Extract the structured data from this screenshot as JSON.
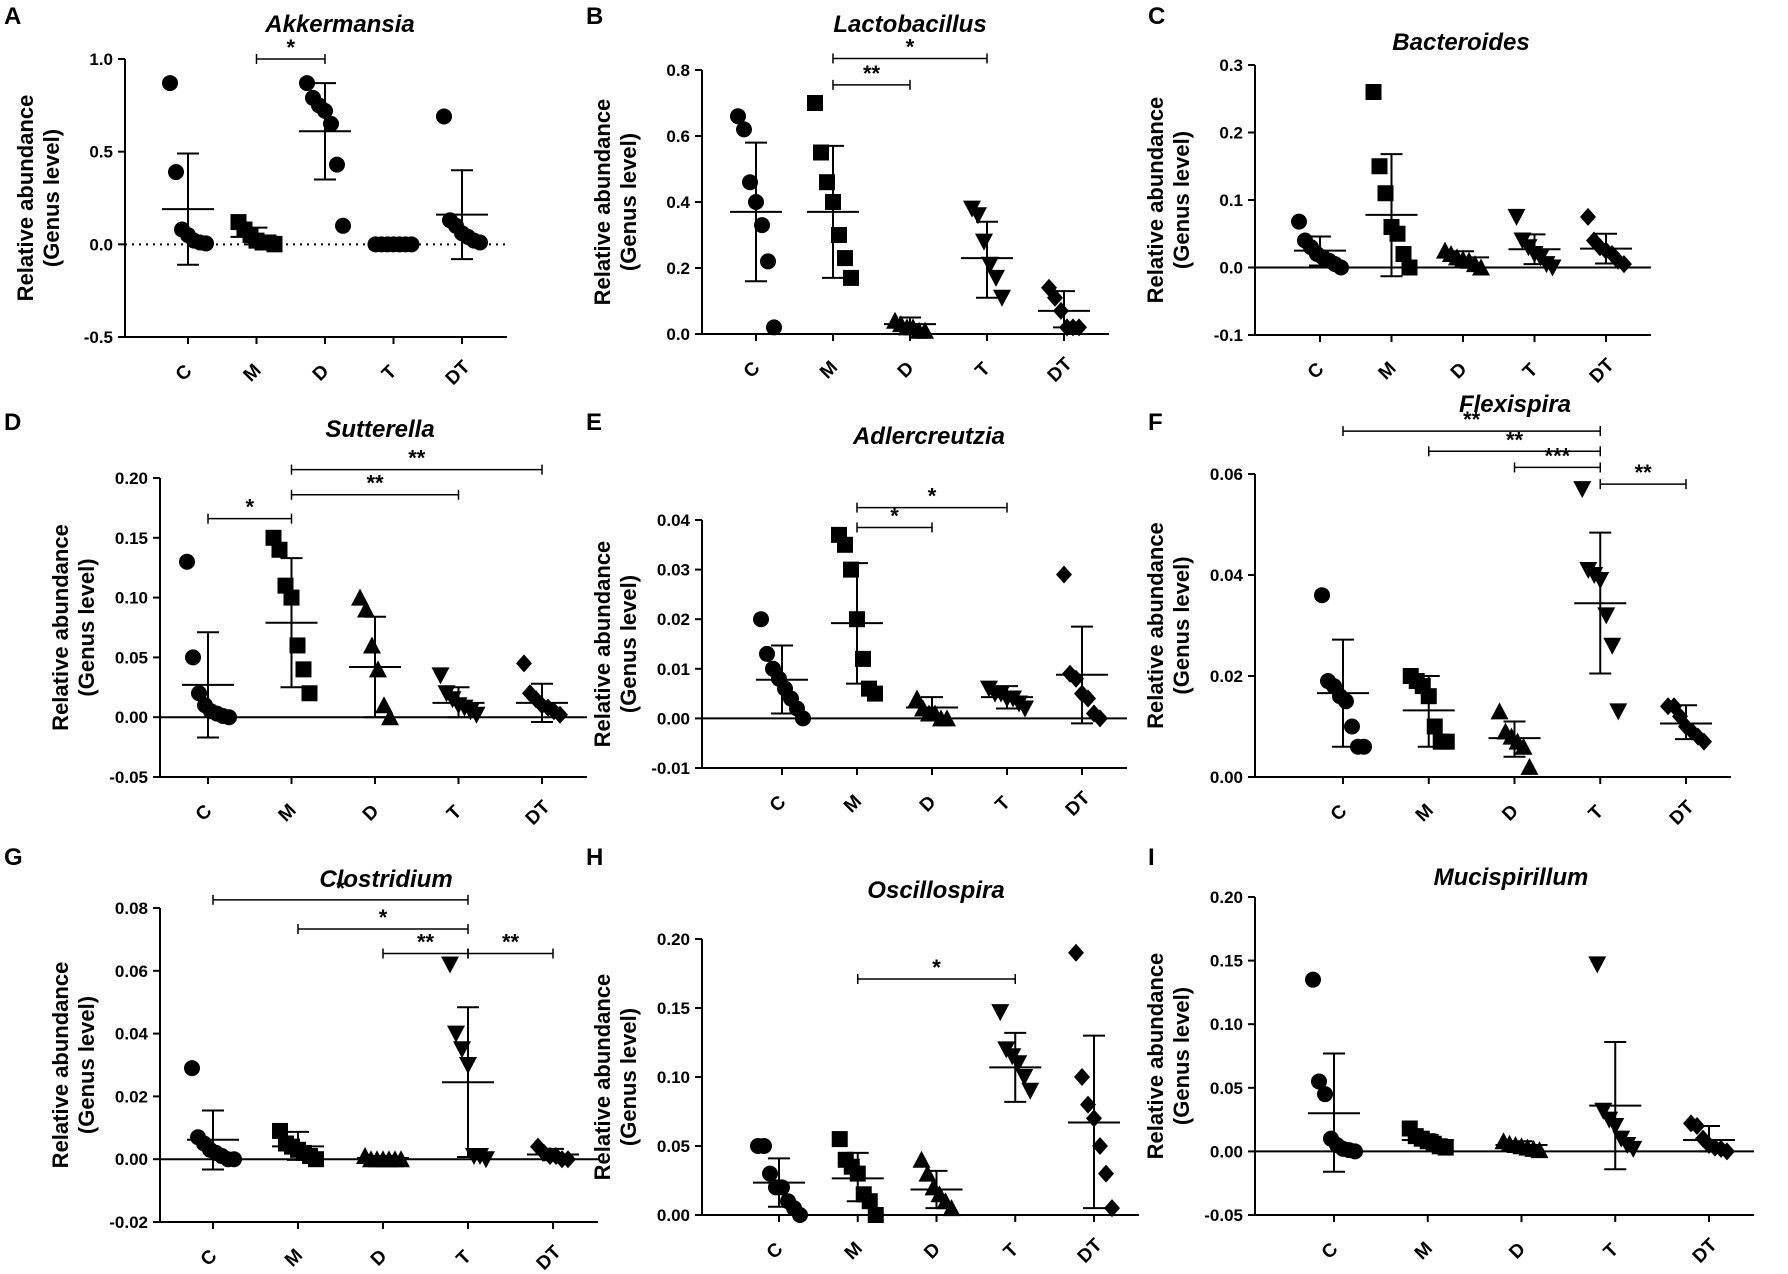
{
  "y_axis_label_line1": "Relative abundance",
  "y_axis_label_line2": "(Genus level)",
  "chart_data": [
    {
      "panel": "A",
      "type": "scatter",
      "title": "Akkermansia",
      "categories": [
        "C",
        "M",
        "D",
        "T",
        "DT"
      ],
      "markers": [
        "circle",
        "square",
        "circle",
        "circle",
        "circle"
      ],
      "ylim": [
        -0.5,
        1.0
      ],
      "yticks": [
        "-0.5",
        "0.0",
        "0.5",
        "1.0"
      ],
      "y_tick_values": [
        -0.5,
        0,
        0.5,
        1.0
      ],
      "dotted_zero_line": true,
      "points": [
        [
          0.87,
          0.39,
          0.08,
          0.05,
          0.02,
          0.01,
          0.005
        ],
        [
          0.12,
          0.08,
          0.05,
          0.02,
          0.01,
          0.01,
          0.0
        ],
        [
          0.87,
          0.79,
          0.75,
          0.72,
          0.65,
          0.43,
          0.1
        ],
        [
          0.0,
          0.0,
          0.0,
          0.0,
          0.0,
          0.0,
          0.0
        ],
        [
          0.69,
          0.13,
          0.1,
          0.06,
          0.04,
          0.02,
          0.01
        ]
      ],
      "means": [
        0.19,
        0.04,
        0.61,
        0.0,
        0.16
      ],
      "sd_low": [
        -0.11,
        0.0,
        0.35,
        0.0,
        -0.08
      ],
      "sd_high": [
        0.49,
        0.09,
        0.87,
        0.0,
        0.4
      ],
      "significance": [
        {
          "from": "M",
          "to": "D",
          "label": "*",
          "y": 1.0
        }
      ]
    },
    {
      "panel": "B",
      "type": "scatter",
      "title": "Lactobacillus",
      "categories": [
        "C",
        "M",
        "D",
        "T",
        "DT"
      ],
      "markers": [
        "circle",
        "square",
        "triangle",
        "triangle-down",
        "diamond"
      ],
      "ylim": [
        0.0,
        0.8
      ],
      "yticks": [
        "0.0",
        "0.2",
        "0.4",
        "0.6",
        "0.8"
      ],
      "y_tick_values": [
        0,
        0.2,
        0.4,
        0.6,
        0.8
      ],
      "dotted_zero_line": false,
      "points": [
        [
          0.66,
          0.62,
          0.46,
          0.4,
          0.33,
          0.22,
          0.02
        ],
        [
          0.7,
          0.55,
          0.46,
          0.4,
          0.3,
          0.23,
          0.17
        ],
        [
          0.04,
          0.03,
          0.02,
          0.02,
          0.01,
          0.01
        ],
        [
          0.38,
          0.36,
          0.28,
          0.21,
          0.17,
          0.11
        ],
        [
          0.14,
          0.11,
          0.07,
          0.02,
          0.02,
          0.02
        ]
      ],
      "means": [
        0.37,
        0.37,
        0.03,
        0.23,
        0.07
      ],
      "sd_low": [
        0.16,
        0.17,
        0.01,
        0.11,
        0.02
      ],
      "sd_high": [
        0.58,
        0.57,
        0.05,
        0.34,
        0.13
      ],
      "significance": [
        {
          "from": "M",
          "to": "T",
          "label": "*",
          "y": 0.835
        },
        {
          "from": "M",
          "to": "D",
          "label": "**",
          "y": 0.755
        }
      ]
    },
    {
      "panel": "C",
      "type": "scatter",
      "title": "Bacteroides",
      "categories": [
        "C",
        "M",
        "D",
        "T",
        "DT"
      ],
      "markers": [
        "circle",
        "square",
        "triangle",
        "triangle-down",
        "diamond"
      ],
      "ylim": [
        -0.1,
        0.3
      ],
      "yticks": [
        "-0.1",
        "0.0",
        "0.1",
        "0.2",
        "0.3"
      ],
      "y_tick_values": [
        -0.1,
        0,
        0.1,
        0.2,
        0.3
      ],
      "dotted_zero_line": false,
      "points": [
        [
          0.068,
          0.04,
          0.03,
          0.02,
          0.015,
          0.01,
          0.005,
          0.0
        ],
        [
          0.26,
          0.15,
          0.11,
          0.06,
          0.05,
          0.02,
          0.0
        ],
        [
          0.025,
          0.02,
          0.015,
          0.012,
          0.01,
          0.005,
          0.0
        ],
        [
          0.075,
          0.04,
          0.03,
          0.02,
          0.015,
          0.005,
          0.0
        ],
        [
          0.075,
          0.04,
          0.03,
          0.025,
          0.02,
          0.01,
          0.005
        ]
      ],
      "means": [
        0.025,
        0.078,
        0.015,
        0.027,
        0.028
      ],
      "sd_low": [
        0.003,
        -0.013,
        0.005,
        0.005,
        0.006
      ],
      "sd_high": [
        0.046,
        0.168,
        0.024,
        0.049,
        0.05
      ],
      "significance": []
    },
    {
      "panel": "D",
      "type": "scatter",
      "title": "Sutterella",
      "categories": [
        "C",
        "M",
        "D",
        "T",
        "DT"
      ],
      "markers": [
        "circle",
        "square",
        "triangle",
        "triangle-down",
        "diamond"
      ],
      "ylim": [
        -0.05,
        0.2
      ],
      "yticks": [
        "-0.05",
        "0.00",
        "0.05",
        "0.10",
        "0.15",
        "0.20"
      ],
      "y_tick_values": [
        -0.05,
        0,
        0.05,
        0.1,
        0.15,
        0.2
      ],
      "dotted_zero_line": false,
      "points": [
        [
          0.13,
          0.05,
          0.02,
          0.01,
          0.005,
          0.003,
          0.001,
          0.0
        ],
        [
          0.15,
          0.14,
          0.11,
          0.1,
          0.06,
          0.04,
          0.02
        ],
        [
          0.1,
          0.09,
          0.06,
          0.04,
          0.01,
          0.0
        ],
        [
          0.035,
          0.02,
          0.015,
          0.01,
          0.008,
          0.005,
          0.002
        ],
        [
          0.045,
          0.02,
          0.015,
          0.01,
          0.008,
          0.005,
          0.002
        ]
      ],
      "means": [
        0.027,
        0.079,
        0.042,
        0.012,
        0.012
      ],
      "sd_low": [
        -0.017,
        0.025,
        0.0,
        0.0,
        -0.004
      ],
      "sd_high": [
        0.071,
        0.133,
        0.084,
        0.025,
        0.028
      ],
      "significance": [
        {
          "from": "M",
          "to": "DT",
          "label": "**",
          "y": 0.207
        },
        {
          "from": "M",
          "to": "T",
          "label": "**",
          "y": 0.186
        },
        {
          "from": "C",
          "to": "M",
          "label": "*",
          "y": 0.166
        }
      ]
    },
    {
      "panel": "E",
      "type": "scatter",
      "title": "Adlercreutzia",
      "categories": [
        "C",
        "M",
        "D",
        "T",
        "DT"
      ],
      "markers": [
        "circle",
        "square",
        "triangle",
        "triangle-down",
        "diamond"
      ],
      "ylim": [
        -0.01,
        0.04
      ],
      "yticks": [
        "-0.01",
        "0.00",
        "0.01",
        "0.02",
        "0.03",
        "0.04"
      ],
      "y_tick_values": [
        -0.01,
        0,
        0.01,
        0.02,
        0.03,
        0.04
      ],
      "dotted_zero_line": false,
      "points": [
        [
          0.02,
          0.013,
          0.01,
          0.008,
          0.006,
          0.004,
          0.002,
          0.0
        ],
        [
          0.037,
          0.035,
          0.03,
          0.02,
          0.012,
          0.006,
          0.005
        ],
        [
          0.004,
          0.002,
          0.001,
          0.001,
          0.0,
          0.0
        ],
        [
          0.006,
          0.005,
          0.005,
          0.004,
          0.004,
          0.003,
          0.002
        ],
        [
          0.029,
          0.009,
          0.008,
          0.005,
          0.004,
          0.001,
          0.0
        ]
      ],
      "means": [
        0.0078,
        0.0192,
        0.0022,
        0.0043,
        0.0088
      ],
      "sd_low": [
        0.001,
        0.007,
        0.0,
        0.002,
        -0.001
      ],
      "sd_high": [
        0.0147,
        0.0313,
        0.0043,
        0.0065,
        0.0185
      ],
      "significance": [
        {
          "from": "M",
          "to": "T",
          "label": "*",
          "y": 0.0425
        },
        {
          "from": "M",
          "to": "D",
          "label": "*",
          "y": 0.0385
        }
      ]
    },
    {
      "panel": "F",
      "type": "scatter",
      "title": "Flexispira",
      "categories": [
        "C",
        "M",
        "D",
        "T",
        "DT"
      ],
      "markers": [
        "circle",
        "square",
        "triangle",
        "triangle-down",
        "diamond"
      ],
      "ylim": [
        0.0,
        0.06
      ],
      "yticks": [
        "0.00",
        "0.02",
        "0.04",
        "0.06"
      ],
      "y_tick_values": [
        0,
        0.02,
        0.04,
        0.06
      ],
      "dotted_zero_line": false,
      "points": [
        [
          0.036,
          0.019,
          0.018,
          0.016,
          0.015,
          0.01,
          0.006,
          0.006
        ],
        [
          0.02,
          0.019,
          0.018,
          0.016,
          0.01,
          0.007,
          0.007
        ],
        [
          0.013,
          0.009,
          0.008,
          0.007,
          0.006,
          0.002
        ],
        [
          0.057,
          0.041,
          0.04,
          0.039,
          0.032,
          0.026,
          0.013
        ],
        [
          0.014,
          0.014,
          0.012,
          0.01,
          0.009,
          0.008,
          0.007
        ]
      ],
      "means": [
        0.0166,
        0.0132,
        0.0077,
        0.0344,
        0.0106
      ],
      "sd_low": [
        0.006,
        0.006,
        0.004,
        0.0205,
        0.0075
      ],
      "sd_high": [
        0.0272,
        0.02,
        0.011,
        0.0484,
        0.0142
      ],
      "significance": [
        {
          "from": "C",
          "to": "T",
          "label": "**",
          "y": 0.0685
        },
        {
          "from": "M",
          "to": "T",
          "label": "**",
          "y": 0.0645
        },
        {
          "from": "D",
          "to": "T",
          "label": "***",
          "y": 0.0613
        },
        {
          "from": "T",
          "to": "DT",
          "label": "**",
          "y": 0.058
        }
      ]
    },
    {
      "panel": "G",
      "type": "scatter",
      "title": "Clostridium",
      "categories": [
        "C",
        "M",
        "D",
        "T",
        "DT"
      ],
      "markers": [
        "circle",
        "square",
        "triangle",
        "triangle-down",
        "diamond"
      ],
      "ylim": [
        -0.02,
        0.08
      ],
      "yticks": [
        "-0.02",
        "0.00",
        "0.02",
        "0.04",
        "0.06",
        "0.08"
      ],
      "y_tick_values": [
        -0.02,
        0,
        0.02,
        0.04,
        0.06,
        0.08
      ],
      "dotted_zero_line": false,
      "points": [
        [
          0.029,
          0.007,
          0.005,
          0.003,
          0.002,
          0.001,
          0.0,
          0.0
        ],
        [
          0.009,
          0.005,
          0.004,
          0.003,
          0.002,
          0.001,
          0.0
        ],
        [
          0.001,
          0.0,
          0.0,
          0.0,
          0.0,
          0.0,
          0.0
        ],
        [
          0.062,
          0.04,
          0.035,
          0.03,
          0.001,
          0.001,
          0.0
        ],
        [
          0.004,
          0.002,
          0.001,
          0.001,
          0.0,
          0.0
        ]
      ],
      "means": [
        0.0062,
        0.0041,
        0.0004,
        0.0245,
        0.0015
      ],
      "sd_low": [
        -0.0033,
        -0.0002,
        -0.0003,
        0.0007,
        -0.0003
      ],
      "sd_high": [
        0.0155,
        0.0087,
        0.001,
        0.0484,
        0.0033
      ],
      "significance": [
        {
          "from": "C",
          "to": "T",
          "label": "*",
          "y": 0.0826
        },
        {
          "from": "M",
          "to": "T",
          "label": "*",
          "y": 0.0733
        },
        {
          "from": "D",
          "to": "T",
          "label": "**",
          "y": 0.0655
        },
        {
          "from": "T",
          "to": "DT",
          "label": "**",
          "y": 0.0655
        }
      ]
    },
    {
      "panel": "H",
      "type": "scatter",
      "title": "Oscillospira",
      "categories": [
        "C",
        "M",
        "D",
        "T",
        "DT"
      ],
      "markers": [
        "circle",
        "square",
        "triangle",
        "triangle-down",
        "diamond"
      ],
      "ylim": [
        0.0,
        0.2
      ],
      "yticks": [
        "0.00",
        "0.05",
        "0.10",
        "0.15",
        "0.20"
      ],
      "y_tick_values": [
        0,
        0.05,
        0.1,
        0.15,
        0.2
      ],
      "dotted_zero_line": false,
      "points": [
        [
          0.05,
          0.05,
          0.03,
          0.02,
          0.02,
          0.01,
          0.005,
          0.0
        ],
        [
          0.055,
          0.04,
          0.035,
          0.03,
          0.015,
          0.01,
          0.0
        ],
        [
          0.04,
          0.03,
          0.02,
          0.015,
          0.01,
          0.005
        ],
        [
          0.147,
          0.12,
          0.115,
          0.11,
          0.1,
          0.09
        ],
        [
          0.19,
          0.1,
          0.08,
          0.07,
          0.05,
          0.03,
          0.005
        ]
      ],
      "means": [
        0.0235,
        0.0265,
        0.0185,
        0.107,
        0.067
      ],
      "sd_low": [
        0.006,
        0.01,
        0.005,
        0.082,
        0.005
      ],
      "sd_high": [
        0.041,
        0.045,
        0.032,
        0.132,
        0.13
      ],
      "significance": [
        {
          "from": "M",
          "to": "T",
          "label": "*",
          "y": 0.171
        }
      ]
    },
    {
      "panel": "I",
      "type": "scatter",
      "title": "Mucispirillum",
      "categories": [
        "C",
        "M",
        "D",
        "T",
        "DT"
      ],
      "markers": [
        "circle",
        "square",
        "triangle",
        "triangle-down",
        "diamond"
      ],
      "ylim": [
        -0.05,
        0.2
      ],
      "yticks": [
        "-0.05",
        "0.00",
        "0.05",
        "0.10",
        "0.15",
        "0.20"
      ],
      "y_tick_values": [
        -0.05,
        0,
        0.05,
        0.1,
        0.15,
        0.2
      ],
      "dotted_zero_line": false,
      "points": [
        [
          0.135,
          0.055,
          0.045,
          0.01,
          0.005,
          0.002,
          0.001,
          0.0
        ],
        [
          0.018,
          0.012,
          0.01,
          0.008,
          0.006,
          0.004,
          0.003
        ],
        [
          0.008,
          0.006,
          0.005,
          0.004,
          0.003,
          0.002,
          0.001
        ],
        [
          0.147,
          0.032,
          0.025,
          0.02,
          0.01,
          0.005,
          0.002
        ],
        [
          0.022,
          0.02,
          0.01,
          0.005,
          0.003,
          0.002,
          0.0
        ]
      ],
      "means": [
        0.03,
        0.009,
        0.005,
        0.036,
        0.009
      ],
      "sd_low": [
        -0.016,
        0.005,
        0.003,
        -0.014,
        0.0
      ],
      "sd_high": [
        0.077,
        0.013,
        0.008,
        0.086,
        0.02
      ],
      "significance": []
    }
  ]
}
